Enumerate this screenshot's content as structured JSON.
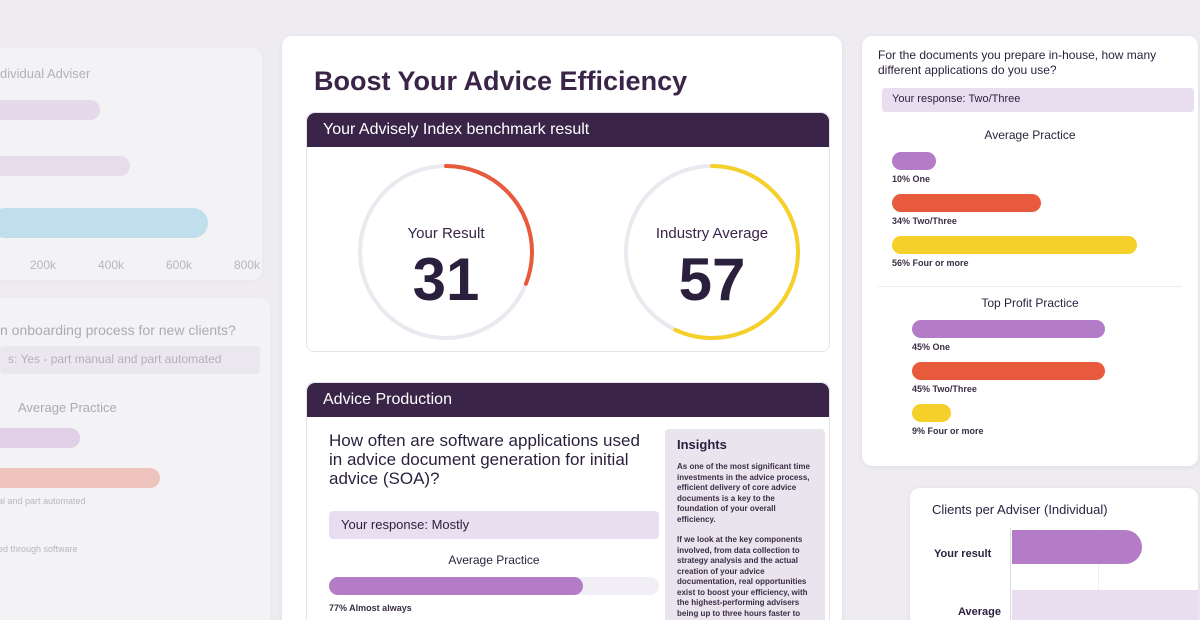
{
  "left_panel": {
    "title": "dividual Adviser",
    "axis_ticks": [
      "200k",
      "400k",
      "600k",
      "800k"
    ],
    "question": "n onboarding process for new clients?",
    "response": "s: Yes - part manual and part automated",
    "avg_title": "Average Practice",
    "label_a": "al and part automated",
    "label_b": "ed through software"
  },
  "main": {
    "title": "Boost Your Advice Efficiency",
    "benchmark": {
      "header": "Your Advisely Index benchmark result",
      "your_result_label": "Your Result",
      "your_result_value": "31",
      "your_result_fraction": 0.31,
      "industry_label": "Industry Average",
      "industry_value": "57",
      "industry_fraction": 0.57,
      "colors": {
        "orange": "#e85a3c",
        "yellow": "#f5cf2a"
      }
    },
    "production": {
      "header": "Advice Production",
      "question": "How often are software applications used in advice document generation for initial advice (SOA)?",
      "response": "Your response: Mostly",
      "avg_title": "Average Practice",
      "bar_label": "77% Almost always",
      "bar_fraction": 0.77
    },
    "insights": {
      "title": "Insights",
      "p1": "As one of the most significant time investments in the advice process, efficient delivery of core advice documents is a key to the foundation of your overall efficiency.",
      "p2": "If we look at the key components involved, from data collection to strategy analysis and the actual creation of your advice documentation, real opportunities exist to boost your efficiency, with the highest-performing advisers being up to three hours faster to completion."
    }
  },
  "right": {
    "question": "For the documents you prepare in-house, how many different applications do you use?",
    "response": "Your response: Two/Three",
    "avg_title": "Average Practice",
    "avg_bars": [
      {
        "label": "10% One",
        "value": 10,
        "color": "#b47cc6"
      },
      {
        "label": "34% Two/Three",
        "value": 34,
        "color": "#e85a3c"
      },
      {
        "label": "56% Four or more",
        "value": 56,
        "color": "#f5cf2a"
      }
    ],
    "top_title": "Top Profit Practice",
    "top_bars": [
      {
        "label": "45% One",
        "value": 45,
        "color": "#b47cc6"
      },
      {
        "label": "45% Two/Three",
        "value": 45,
        "color": "#e85a3c"
      },
      {
        "label": "9% Four or more",
        "value": 9,
        "color": "#f5cf2a"
      }
    ],
    "clients_title": "Clients per Adviser (Individual)",
    "your_result": "Your result",
    "average": "Average"
  }
}
